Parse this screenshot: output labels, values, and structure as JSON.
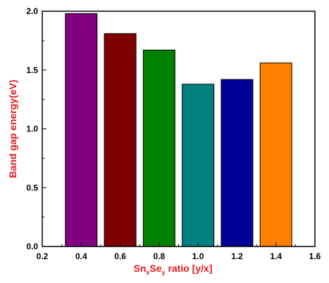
{
  "chart_data": {
    "type": "bar",
    "x": [
      0.4,
      0.6,
      0.8,
      1.0,
      1.2,
      1.4
    ],
    "values": [
      1.98,
      1.81,
      1.67,
      1.38,
      1.42,
      1.56
    ],
    "bar_colors": [
      "#800080",
      "#800000",
      "#008000",
      "#008080",
      "#000099",
      "#ff8000"
    ],
    "ylabel": "Band gap energy(eV)",
    "xlabel": {
      "pre": "Sn",
      "sub1": "x",
      "mid": "Se",
      "sub2": "y",
      "post": " ratio [y/x]"
    },
    "xlim": [
      0.2,
      1.6
    ],
    "ylim": [
      0.0,
      2.0
    ],
    "x_ticks": [
      "0.2",
      "0.4",
      "0.6",
      "0.8",
      "1.0",
      "1.2",
      "1.4",
      "1.6"
    ],
    "y_ticks": [
      "0.0",
      "0.5",
      "1.0",
      "1.5",
      "2.0"
    ],
    "grid": false,
    "axis_title_color": "#e8181e"
  }
}
